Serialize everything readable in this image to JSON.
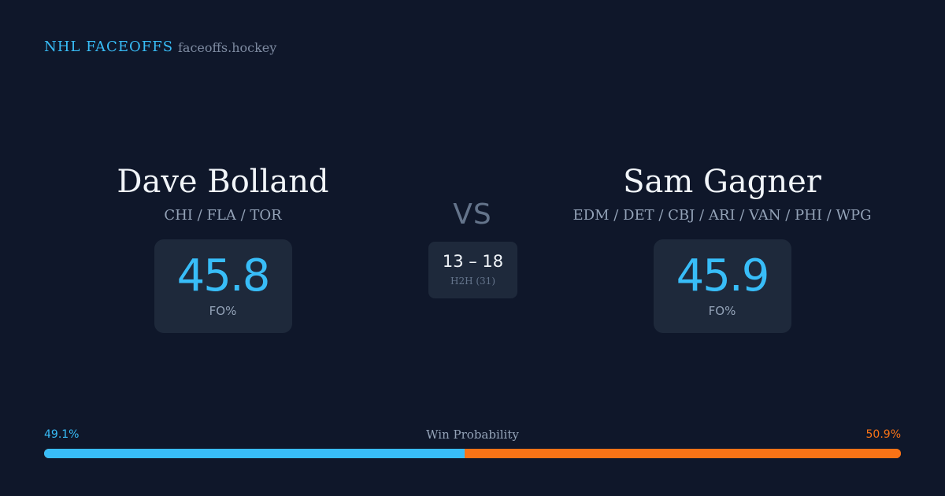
{
  "header": {
    "brand": "NHL FACEOFFS",
    "domain": "faceoffs.hockey"
  },
  "player_left": {
    "name": "Dave Bolland",
    "teams": "CHI / FLA / TOR",
    "fo_value": "45.8",
    "fo_label": "FO%"
  },
  "player_right": {
    "name": "Sam Gagner",
    "teams": "EDM / DET / CBJ / ARI / VAN / PHI / WPG",
    "fo_value": "45.9",
    "fo_label": "FO%"
  },
  "matchup": {
    "vs_label": "VS",
    "h2h_score": "13 – 18",
    "h2h_label": "H2H (31)"
  },
  "win_probability": {
    "title": "Win Probability",
    "left_label": "49.1%",
    "right_label": "50.9%",
    "left_fraction": 0.491,
    "right_fraction": 0.509
  },
  "colors": {
    "background": "#0f172a",
    "card": "#1e293b",
    "accent_left": "#38bdf8",
    "accent_right": "#f97316"
  }
}
